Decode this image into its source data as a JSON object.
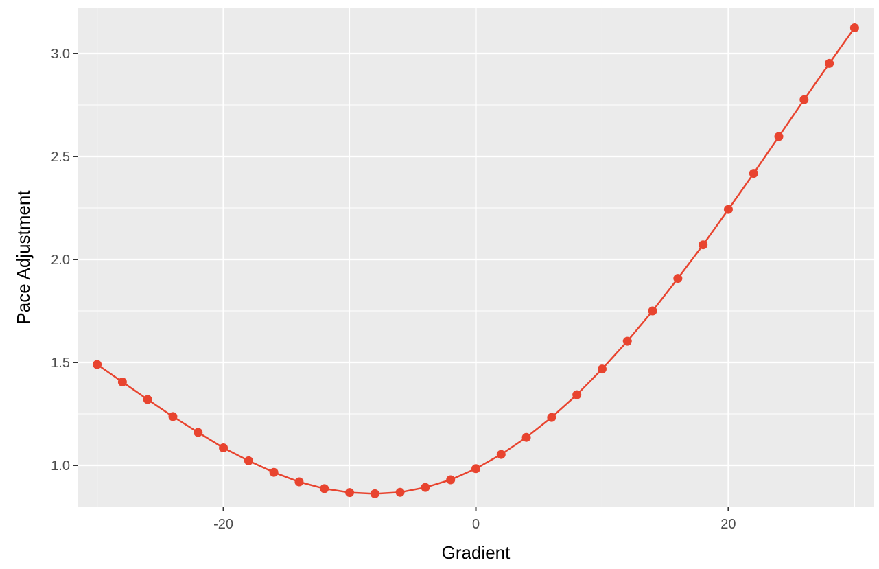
{
  "chart_data": {
    "type": "line",
    "title": "",
    "xlabel": "Gradient",
    "ylabel": "Pace Adjustment",
    "xlim": [
      -31.5,
      31.5
    ],
    "ylim": [
      0.8,
      3.22
    ],
    "x_ticks": [
      -20,
      0,
      20
    ],
    "x_tick_labels": [
      "-20",
      "0",
      "20"
    ],
    "x_minor_ticks": [
      -30,
      -10,
      10,
      30
    ],
    "y_ticks": [
      1.0,
      1.5,
      2.0,
      2.5,
      3.0
    ],
    "y_tick_labels": [
      "1.0",
      "1.5",
      "2.0",
      "2.5",
      "3.0"
    ],
    "y_minor_ticks": [
      1.25,
      1.75,
      2.25,
      2.75
    ],
    "grid": true,
    "background_color": "#ebebeb",
    "grid_color": "#ffffff",
    "series_color": "#e8442f",
    "series": [
      {
        "x": [
          -30,
          -28,
          -26,
          -24,
          -22,
          -20,
          -18,
          -16,
          -14,
          -12,
          -10,
          -8,
          -6,
          -4,
          -2,
          0,
          2,
          4,
          6,
          8,
          10,
          12,
          14,
          16,
          18,
          20,
          22,
          24,
          26,
          28,
          30
        ],
        "values": [
          1.49,
          1.405,
          1.32,
          1.237,
          1.16,
          1.085,
          1.022,
          0.966,
          0.92,
          0.887,
          0.868,
          0.862,
          0.869,
          0.893,
          0.93,
          0.984,
          1.053,
          1.136,
          1.233,
          1.343,
          1.468,
          1.603,
          1.75,
          1.908,
          2.071,
          2.243,
          2.418,
          2.597,
          2.776,
          2.952,
          3.125
        ]
      }
    ]
  }
}
